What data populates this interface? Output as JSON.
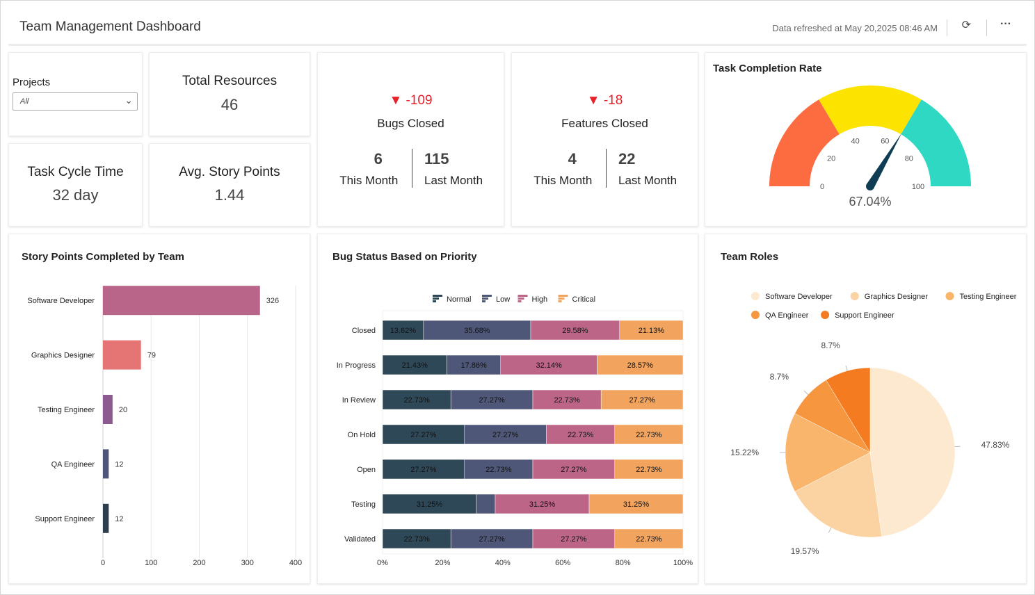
{
  "header": {
    "title": "Team Management Dashboard",
    "refresh_text": "Data refreshed at May 20,2025 08:46 AM",
    "refresh_icon": "refresh-icon",
    "more_icon": "more-icon"
  },
  "projects": {
    "label": "Projects",
    "value": "All"
  },
  "total_resources": {
    "label": "Total Resources",
    "value": "46"
  },
  "task_cycle": {
    "label": "Task Cycle Time",
    "value": "32 day"
  },
  "story_points": {
    "label": "Avg. Story Points",
    "value": "1.44"
  },
  "bugs": {
    "delta": "-109",
    "label": "Bugs Closed",
    "this_month": "6",
    "this_month_label": "This Month",
    "last_month": "115",
    "last_month_label": "Last Month"
  },
  "features": {
    "delta": "-18",
    "label": "Features Closed",
    "this_month": "4",
    "this_month_label": "This Month",
    "last_month": "22",
    "last_month_label": "Last Month"
  },
  "colors": {
    "down": "#e8202a"
  },
  "chart_data": [
    {
      "type": "gauge",
      "title": "Task Completion Rate",
      "value": 67.04,
      "value_label": "67.04%",
      "range": [
        0,
        100
      ],
      "ticks": [
        "0",
        "20",
        "40",
        "60",
        "80",
        "100"
      ],
      "bands": [
        {
          "from": 0,
          "to": 33,
          "color": "#fd6b40"
        },
        {
          "from": 33,
          "to": 67,
          "color": "#fce300"
        },
        {
          "from": 67,
          "to": 100,
          "color": "#2ed8c3"
        }
      ]
    },
    {
      "type": "bar",
      "title": "Story Points Completed by Team",
      "categories": [
        "Software Developer",
        "Graphics Designer",
        "Testing Engineer",
        "QA Engineer",
        "Support Engineer"
      ],
      "values": [
        326,
        79,
        20,
        12,
        12
      ],
      "colors": [
        "#b86589",
        "#e57575",
        "#8c5a8e",
        "#4e5578",
        "#2f3e4d"
      ],
      "xlim": [
        0,
        400
      ],
      "ticks": [
        "0",
        "100",
        "200",
        "300",
        "400"
      ],
      "grid": true
    },
    {
      "type": "bar",
      "stacked": true,
      "title": "Bug Status Based on Priority",
      "categories": [
        "Closed",
        "In Progress",
        "In Review",
        "On Hold",
        "Open",
        "Testing",
        "Validated"
      ],
      "series": [
        {
          "name": "Normal",
          "color": "#2f4858",
          "values": [
            13.62,
            21.43,
            22.73,
            27.27,
            27.27,
            31.25,
            22.73
          ]
        },
        {
          "name": "Low",
          "color": "#4f5778",
          "values": [
            35.68,
            17.86,
            27.27,
            27.27,
            22.73,
            6.25,
            27.27
          ]
        },
        {
          "name": "High",
          "color": "#bd6587",
          "values": [
            29.58,
            32.14,
            22.73,
            22.73,
            27.27,
            31.25,
            27.27
          ]
        },
        {
          "name": "Critical",
          "color": "#f2a35e",
          "values": [
            21.13,
            28.57,
            27.27,
            22.73,
            22.73,
            31.25,
            22.73
          ]
        }
      ],
      "xlim": [
        0,
        100
      ],
      "ticks": [
        "0%",
        "20%",
        "40%",
        "60%",
        "80%",
        "100%"
      ],
      "legend": "top"
    },
    {
      "type": "pie",
      "title": "Team Roles",
      "categories": [
        "Software Developer",
        "Graphics Designer",
        "Testing Engineer",
        "QA Engineer",
        "Support Engineer"
      ],
      "values": [
        47.83,
        19.57,
        15.22,
        8.7,
        8.7
      ],
      "labels": [
        "47.83%",
        "19.57%",
        "15.22%",
        "8.7%",
        "8.7%"
      ],
      "colors": [
        "#fde9cf",
        "#fbd3a3",
        "#f8b56b",
        "#f6963f",
        "#f47b1f"
      ],
      "legend": "top"
    }
  ]
}
